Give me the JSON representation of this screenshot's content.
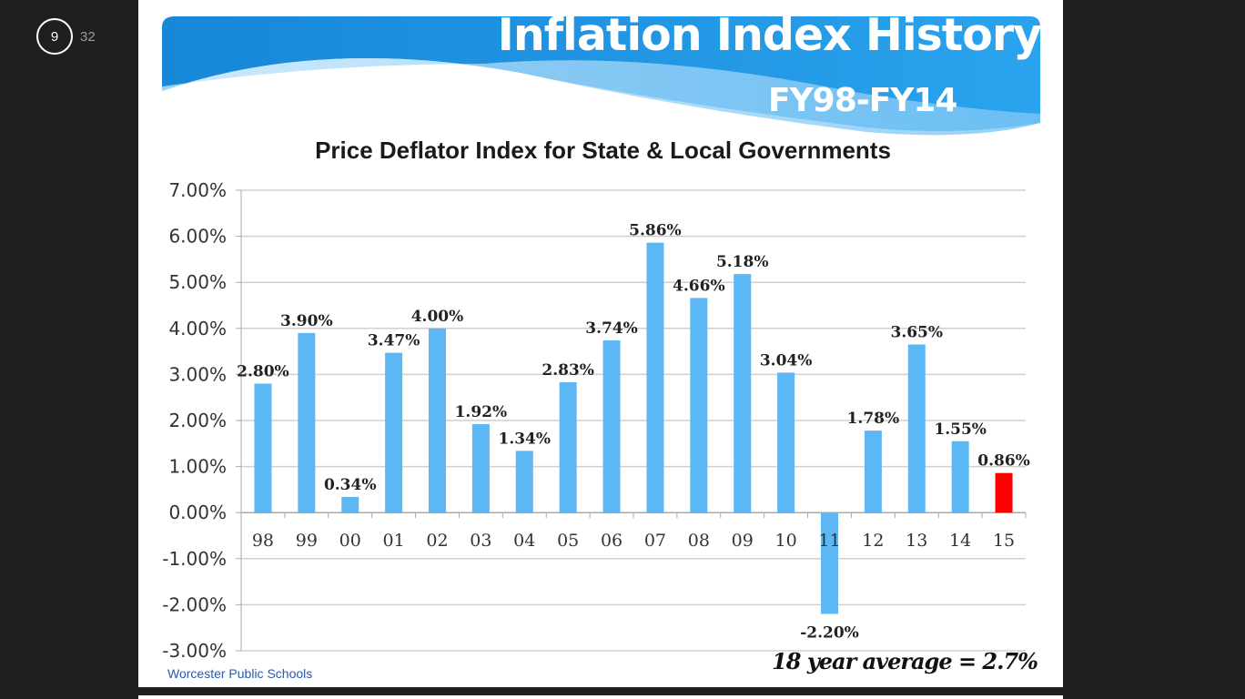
{
  "viewer": {
    "current_slide": "9",
    "total_slides": "32"
  },
  "slide": {
    "title": "Inflation Index History",
    "subtitle": "FY98-FY14",
    "footer": "Worcester Public Schools",
    "note": "18 year average = 2.7%",
    "colors": {
      "banner": "#1a8fe0",
      "bar": "#5bb8f5",
      "highlight_bar": "#ff0000"
    }
  },
  "chart_data": {
    "type": "bar",
    "title": "Price Deflator Index for State & Local Governments",
    "categories": [
      "98",
      "99",
      "00",
      "01",
      "02",
      "03",
      "04",
      "05",
      "06",
      "07",
      "08",
      "09",
      "10",
      "11",
      "12",
      "13",
      "14",
      "15"
    ],
    "values": [
      2.8,
      3.9,
      0.34,
      3.47,
      4.0,
      1.92,
      1.34,
      2.83,
      3.74,
      5.86,
      4.66,
      5.18,
      3.04,
      -2.2,
      1.78,
      3.65,
      1.55,
      0.86
    ],
    "data_labels": [
      "2.80%",
      "3.90%",
      "0.34%",
      "3.47%",
      "4.00%",
      "1.92%",
      "1.34%",
      "2.83%",
      "3.74%",
      "5.86%",
      "4.66%",
      "5.18%",
      "3.04%",
      "-2.20%",
      "1.78%",
      "3.65%",
      "1.55%",
      "0.86%"
    ],
    "highlighted_category": "15",
    "ylim": [
      -3,
      7
    ],
    "yticks": [
      "7.00%",
      "6.00%",
      "5.00%",
      "4.00%",
      "3.00%",
      "2.00%",
      "1.00%",
      "0.00%",
      "-1.00%",
      "-2.00%",
      "-3.00%"
    ],
    "grid": true,
    "xlabel": "",
    "ylabel": ""
  }
}
